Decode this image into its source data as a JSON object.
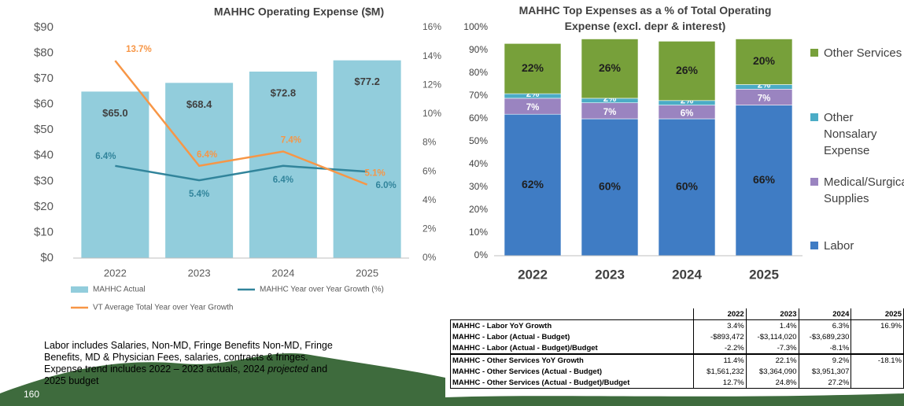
{
  "chart_data": [
    {
      "type": "combo",
      "title": "MAHHC Operating Expense ($M)",
      "categories": [
        "2022",
        "2023",
        "2024",
        "2025"
      ],
      "ylim": [
        0,
        90
      ],
      "yticks": [
        {
          "value": 0,
          "label": "$0"
        },
        {
          "value": 10,
          "label": "$10"
        },
        {
          "value": 20,
          "label": "$20"
        },
        {
          "value": 30,
          "label": "$30"
        },
        {
          "value": 40,
          "label": "$40"
        },
        {
          "value": 50,
          "label": "$50"
        },
        {
          "value": 60,
          "label": "$60"
        },
        {
          "value": 70,
          "label": "$70"
        },
        {
          "value": 80,
          "label": "$80"
        },
        {
          "value": 90,
          "label": "$90"
        }
      ],
      "y2lim": [
        0,
        16
      ],
      "y2ticks": [
        {
          "value": 0,
          "label": "0%"
        },
        {
          "value": 2,
          "label": "2%"
        },
        {
          "value": 4,
          "label": "4%"
        },
        {
          "value": 6,
          "label": "6%"
        },
        {
          "value": 8,
          "label": "8%"
        },
        {
          "value": 10,
          "label": "10%"
        },
        {
          "value": 12,
          "label": "12%"
        },
        {
          "value": 14,
          "label": "14%"
        },
        {
          "value": 16,
          "label": "16%"
        }
      ],
      "grid": false,
      "series": [
        {
          "name": "MAHHC Actual",
          "type": "bar",
          "color": "#92cddc",
          "values": [
            65.0,
            68.4,
            72.8,
            77.2
          ],
          "value_labels": [
            "$65.0",
            "$68.4",
            "$72.8",
            "$77.2"
          ]
        },
        {
          "name": "MAHHC Year over Year Growth (%)",
          "type": "line",
          "axis": "y2",
          "color": "#31849b",
          "values": [
            6.4,
            5.4,
            6.4,
            6.0
          ],
          "value_labels": [
            "6.4%",
            "5.4%",
            "6.4%",
            "6.0%"
          ]
        },
        {
          "name": "VT Average Total Year over Year Growth",
          "type": "line",
          "axis": "y2",
          "color": "#f79646",
          "values": [
            13.7,
            6.4,
            7.4,
            5.1
          ],
          "value_labels": [
            "13.7%",
            "6.4%",
            "7.4%",
            "5.1%"
          ]
        }
      ]
    },
    {
      "type": "stacked_bar",
      "title": "MAHHC Top Expenses as a % of Total Operating Expense (excl. depr & interest)",
      "categories": [
        "2022",
        "2023",
        "2024",
        "2025"
      ],
      "ylim": [
        0,
        100
      ],
      "yticks": [
        {
          "value": 0,
          "label": "0%"
        },
        {
          "value": 10,
          "label": "10%"
        },
        {
          "value": 20,
          "label": "20%"
        },
        {
          "value": 30,
          "label": "30%"
        },
        {
          "value": 40,
          "label": "40%"
        },
        {
          "value": 50,
          "label": "50%"
        },
        {
          "value": 60,
          "label": "60%"
        },
        {
          "value": 70,
          "label": "70%"
        },
        {
          "value": 80,
          "label": "80%"
        },
        {
          "value": 90,
          "label": "90%"
        },
        {
          "value": 100,
          "label": "100%"
        }
      ],
      "grid": false,
      "series": [
        {
          "name": "Labor",
          "color": "#3f7cc4",
          "values": [
            62,
            60,
            60,
            66
          ],
          "value_labels": [
            "62%",
            "60%",
            "60%",
            "66%"
          ]
        },
        {
          "name": "Medical/Surgical Supplies",
          "color": "#9a84c0",
          "values": [
            7,
            7,
            6,
            7
          ],
          "value_labels": [
            "7%",
            "7%",
            "6%",
            "7%"
          ]
        },
        {
          "name": "Other Nonsalary Expense",
          "color": "#4bacc6",
          "values": [
            2,
            2,
            2,
            2
          ],
          "value_labels": [
            "2%",
            "2%",
            "2%",
            "2%"
          ]
        },
        {
          "name": "Other Services",
          "color": "#77a03a",
          "values": [
            22,
            26,
            26,
            20
          ],
          "value_labels": [
            "22%",
            "26%",
            "26%",
            "20%"
          ]
        }
      ]
    }
  ],
  "table": {
    "header": [
      "2022",
      "2023",
      "2024",
      "2025"
    ],
    "rows": [
      [
        "MAHHC - Labor YoY Growth",
        "3.4%",
        "1.4%",
        "6.3%",
        "16.9%"
      ],
      [
        "MAHHC - Labor (Actual - Budget)",
        "-$893,472",
        "-$3,114,020",
        "-$3,689,230"
      ],
      [
        "MAHHC - Labor (Actual - Budget)/Budget",
        "-2.2%",
        "-7.3%",
        "-8.1%"
      ],
      [
        "MAHHC - Other Services YoY Growth",
        "11.4%",
        "22.1%",
        "9.2%",
        "-18.1%"
      ],
      [
        "MAHHC - Other Services (Actual - Budget)",
        "$1,561,232",
        "$3,364,090",
        "$3,951,307"
      ],
      [
        "MAHHC - Other Services (Actual - Budget)/Budget",
        "12.7%",
        "24.8%",
        "27.2%"
      ]
    ]
  },
  "note": [
    "Labor includes Salaries, Non-MD, Fringe Benefits Non-MD, Fringe Benefits, MD & Physician Fees, salaries, contracts & fringes. Expense trend includes 2022 – 2023 actuals, 2024 ",
    "projected",
    " and 2025 budget"
  ],
  "page_number": "160"
}
